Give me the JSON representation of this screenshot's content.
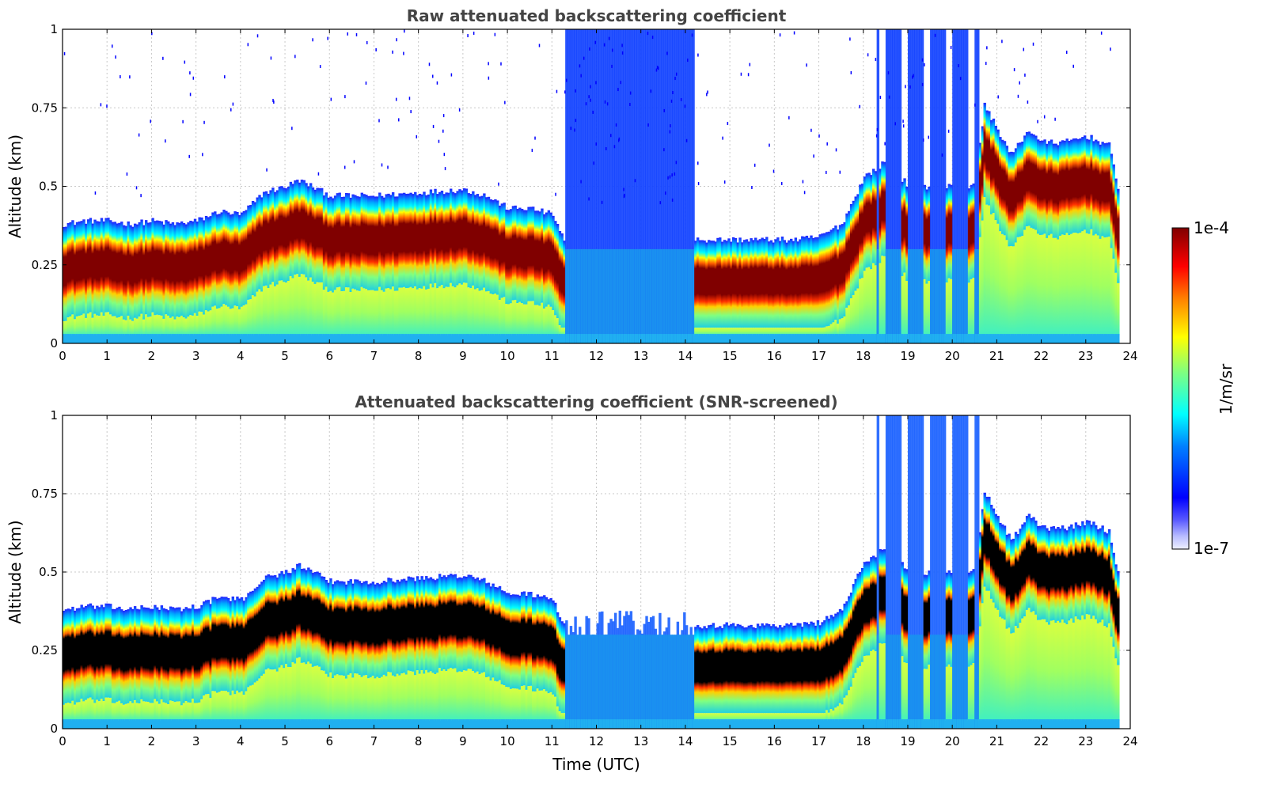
{
  "chart_data": {
    "type": "heatmap",
    "panels": [
      {
        "title": "Raw attenuated backscattering coefficient",
        "ylabel": "Altitude (km)",
        "xlabel": "",
        "xlim": [
          0,
          24
        ],
        "ylim": [
          0,
          1
        ],
        "xticks": [
          "0",
          "1",
          "2",
          "3",
          "4",
          "5",
          "6",
          "7",
          "8",
          "9",
          "10",
          "11",
          "12",
          "13",
          "14",
          "15",
          "16",
          "17",
          "18",
          "19",
          "20",
          "21",
          "22",
          "23",
          "24"
        ],
        "yticks": [
          "0",
          "0.25",
          "0.5",
          "0.75",
          "1"
        ],
        "grid": true,
        "screened": false
      },
      {
        "title": "Attenuated backscattering coefficient (SNR-screened)",
        "ylabel": "Altitude (km)",
        "xlabel": "Time (UTC)",
        "xlim": [
          0,
          24
        ],
        "ylim": [
          0,
          1
        ],
        "xticks": [
          "0",
          "1",
          "2",
          "3",
          "4",
          "5",
          "6",
          "7",
          "8",
          "9",
          "10",
          "11",
          "12",
          "13",
          "14",
          "15",
          "16",
          "17",
          "18",
          "19",
          "20",
          "21",
          "22",
          "23",
          "24"
        ],
        "yticks": [
          "0",
          "0.25",
          "0.5",
          "0.75",
          "1"
        ],
        "grid": true,
        "screened": true
      }
    ],
    "colorbar": {
      "label": "1/m/sr",
      "max_label": "1e-4",
      "min_label": "1e-7",
      "scale": "log",
      "colormap": "jet"
    },
    "layer_top_profile": {
      "time_utc": [
        0,
        0.5,
        1,
        1.5,
        2,
        2.5,
        3,
        3.5,
        4,
        4.5,
        5,
        5.3,
        6,
        7,
        8,
        9,
        9.5,
        10,
        10.5,
        11,
        11.3,
        12,
        13,
        14,
        14.2,
        15,
        16,
        16.5,
        17,
        17.5,
        18,
        18.5,
        19,
        19.5,
        20,
        20.5,
        20.7,
        21,
        21.3,
        21.7,
        22,
        22.5,
        23,
        23.5,
        23.7
      ],
      "altitude_km": [
        0.38,
        0.39,
        0.39,
        0.38,
        0.39,
        0.38,
        0.39,
        0.42,
        0.41,
        0.48,
        0.5,
        0.52,
        0.47,
        0.47,
        0.48,
        0.49,
        0.47,
        0.43,
        0.43,
        0.41,
        0.31,
        0.3,
        0.3,
        0.3,
        0.33,
        0.33,
        0.33,
        0.33,
        0.34,
        0.38,
        0.53,
        0.58,
        0.5,
        0.5,
        0.5,
        0.5,
        0.76,
        0.68,
        0.6,
        0.68,
        0.64,
        0.64,
        0.66,
        0.63,
        0.5
      ]
    }
  }
}
